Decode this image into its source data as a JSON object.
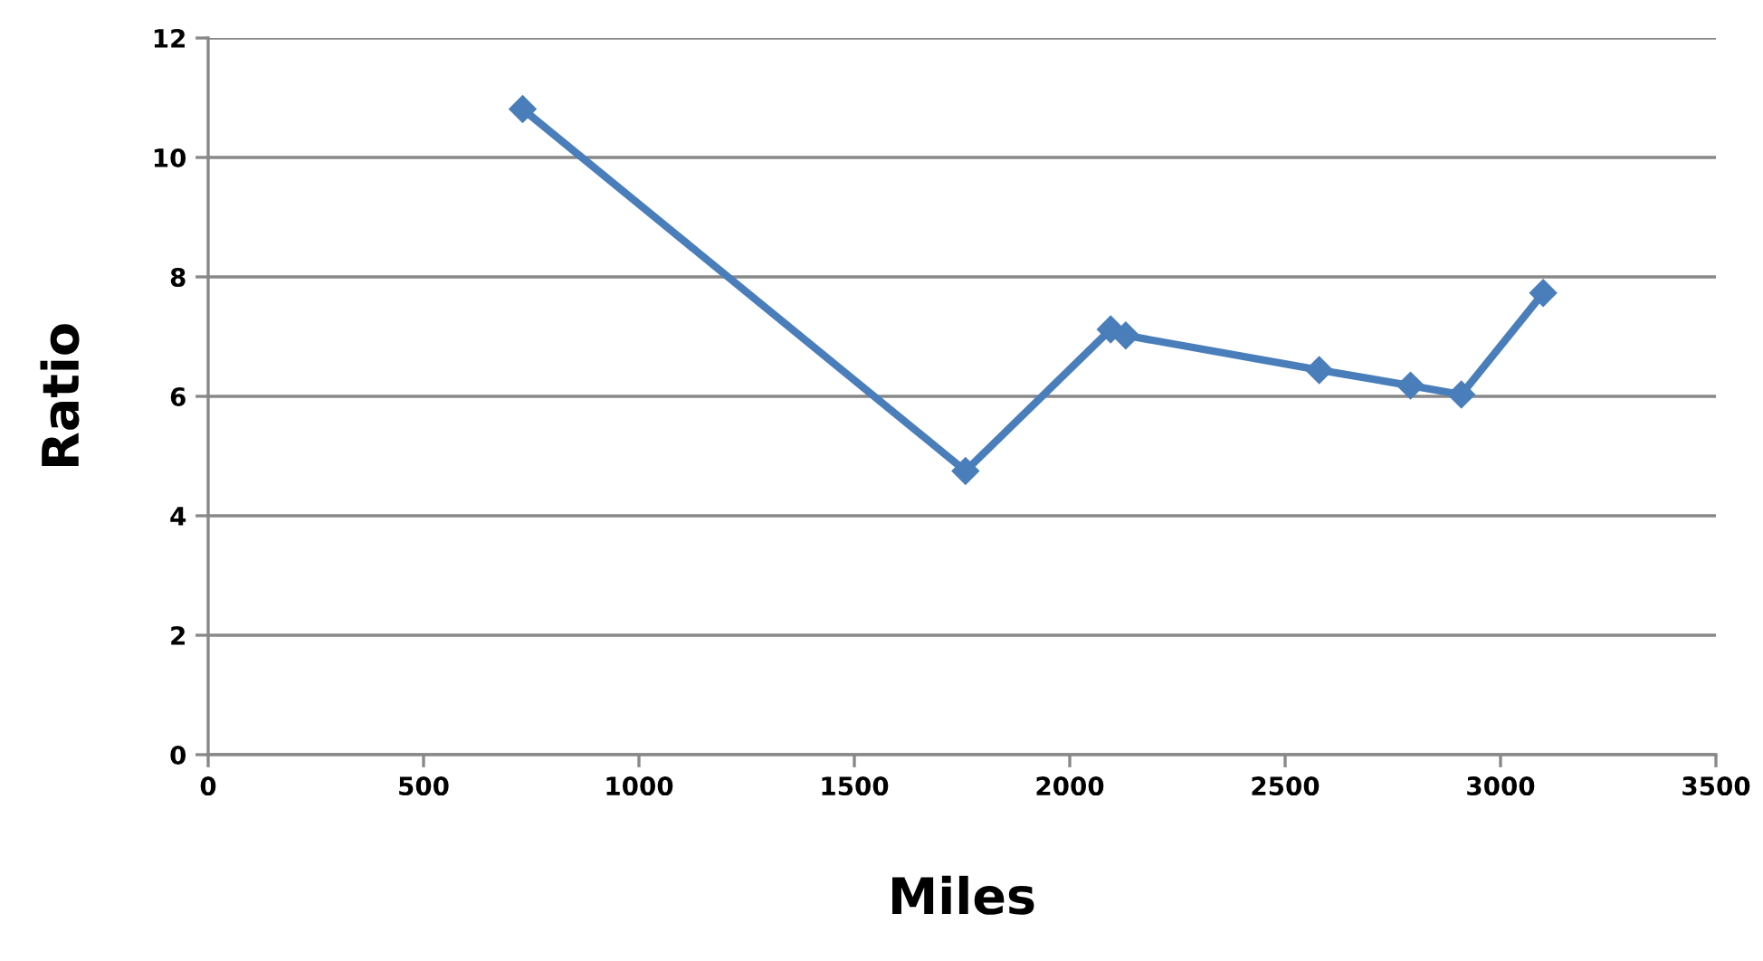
{
  "chart_data": {
    "type": "line",
    "xlabel": "Miles",
    "ylabel": "Ratio",
    "x": [
      730,
      1758,
      2095,
      2130,
      2579,
      2791,
      2909,
      3099
    ],
    "series": [
      {
        "color": "#4a7ebb",
        "values": [
          10.81,
          4.75,
          7.12,
          7.02,
          6.44,
          6.18,
          6.03,
          7.73
        ]
      }
    ],
    "xlim": [
      0,
      3500
    ],
    "xticks": [
      0,
      500,
      1000,
      1500,
      2000,
      2500,
      3000,
      3500
    ],
    "ylim": [
      0,
      12
    ],
    "yticks": [
      0,
      2,
      4,
      6,
      8,
      10,
      12
    ],
    "grid": "y",
    "marker": "diamond",
    "line_style": "solid",
    "legend": false
  }
}
